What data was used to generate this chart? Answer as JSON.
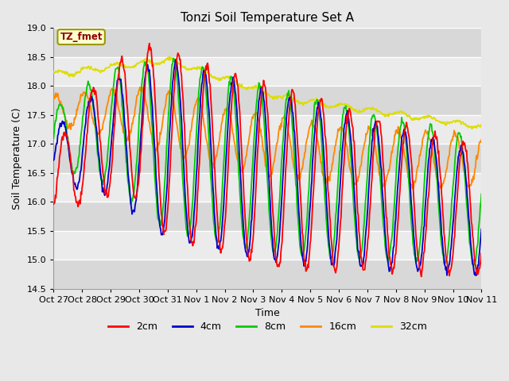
{
  "title": "Tonzi Soil Temperature Set A",
  "xlabel": "Time",
  "ylabel": "Soil Temperature (C)",
  "ylim": [
    14.5,
    19.0
  ],
  "annotation_label": "TZ_fmet",
  "annotation_color": "#8b0000",
  "annotation_bg": "#ffffcc",
  "annotation_border": "#999900",
  "series_colors": {
    "2cm": "#ff0000",
    "4cm": "#0000cc",
    "8cm": "#00cc00",
    "16cm": "#ff8800",
    "32cm": "#dddd00"
  },
  "tick_labels": [
    "Oct 27",
    "Oct 28",
    "Oct 29",
    "Oct 30",
    "Oct 31",
    "Nov 1",
    "Nov 2",
    "Nov 3",
    "Nov 4",
    "Nov 5",
    "Nov 6",
    "Nov 7",
    "Nov 8",
    "Nov 9",
    "Nov 10",
    "Nov 11"
  ],
  "background_color": "#e8e8e8",
  "plot_bg_color": "#f0f0f0",
  "grid_color": "#ffffff",
  "yticks": [
    14.5,
    15.0,
    15.5,
    16.0,
    16.5,
    17.0,
    17.5,
    18.0,
    18.5,
    19.0
  ],
  "title_fontsize": 11,
  "label_fontsize": 9,
  "tick_fontsize": 8
}
